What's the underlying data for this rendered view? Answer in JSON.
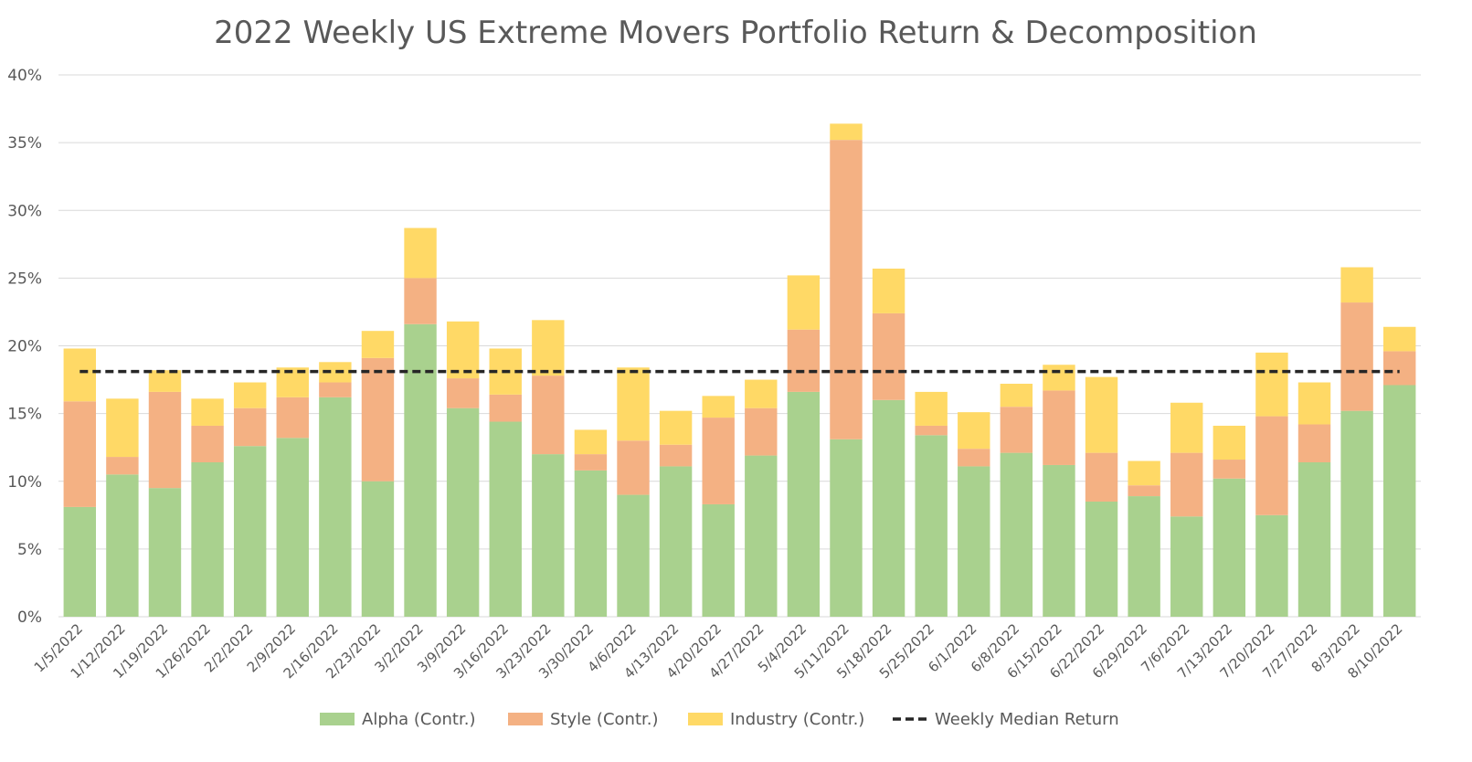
{
  "chart_data": {
    "type": "bar",
    "stacked": true,
    "title": "2022 Weekly US Extreme Movers Portfolio Return & Decomposition",
    "categories": [
      "1/5/2022",
      "1/12/2022",
      "1/19/2022",
      "1/26/2022",
      "2/2/2022",
      "2/9/2022",
      "2/16/2022",
      "2/23/2022",
      "3/2/2022",
      "3/9/2022",
      "3/16/2022",
      "3/23/2022",
      "3/30/2022",
      "4/6/2022",
      "4/13/2022",
      "4/20/2022",
      "4/27/2022",
      "5/4/2022",
      "5/11/2022",
      "5/18/2022",
      "5/25/2022",
      "6/1/2022",
      "6/8/2022",
      "6/15/2022",
      "6/22/2022",
      "6/29/2022",
      "7/6/2022",
      "7/13/2022",
      "7/20/2022",
      "7/27/2022",
      "8/3/2022",
      "8/10/2022"
    ],
    "series": [
      {
        "name": "Alpha (Contr.)",
        "color": "#a9d18e",
        "values": [
          8.1,
          10.5,
          9.5,
          11.4,
          12.6,
          13.2,
          16.2,
          10.0,
          21.6,
          15.4,
          14.4,
          12.0,
          10.8,
          9.0,
          11.1,
          8.3,
          11.9,
          16.6,
          13.1,
          16.0,
          13.4,
          11.1,
          12.1,
          11.2,
          8.5,
          8.9,
          7.4,
          10.2,
          7.5,
          11.4,
          15.2,
          17.1
        ]
      },
      {
        "name": "Style (Contr.)",
        "color": "#f4b183",
        "values": [
          7.8,
          1.3,
          7.1,
          2.7,
          2.8,
          3.0,
          1.1,
          9.1,
          3.4,
          2.2,
          2.0,
          5.8,
          1.2,
          4.0,
          1.6,
          6.4,
          3.5,
          4.6,
          22.1,
          6.4,
          0.7,
          1.3,
          3.4,
          5.5,
          3.6,
          0.8,
          4.7,
          1.4,
          7.3,
          2.8,
          8.0,
          2.5
        ]
      },
      {
        "name": "Industry (Contr.)",
        "color": "#ffd966",
        "values": [
          3.9,
          4.3,
          1.6,
          2.0,
          1.9,
          2.2,
          1.5,
          2.0,
          3.7,
          4.2,
          3.4,
          4.1,
          1.8,
          5.4,
          2.5,
          1.6,
          2.1,
          4.0,
          1.2,
          3.3,
          2.5,
          2.7,
          1.7,
          1.9,
          5.6,
          1.8,
          3.7,
          2.5,
          4.7,
          3.1,
          2.6,
          1.8
        ]
      }
    ],
    "median": {
      "name": "Weekly Median Return",
      "value": 18.1,
      "color": "#262626",
      "style": "dashed"
    },
    "yaxis": {
      "min": 0,
      "max": 40,
      "step": 5,
      "format": "percent"
    },
    "grid": true,
    "legend_position": "bottom"
  }
}
